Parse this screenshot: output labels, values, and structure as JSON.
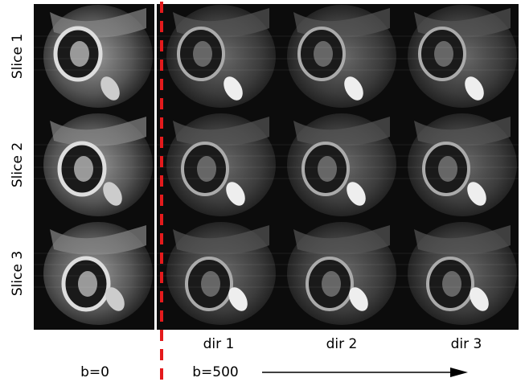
{
  "row_labels": [
    "Slice 1",
    "Slice 2",
    "Slice 3"
  ],
  "column_labels": [
    "dir 1",
    "dir 2",
    "dir 3"
  ],
  "b_labels": [
    "b=0",
    "b=500"
  ]
}
